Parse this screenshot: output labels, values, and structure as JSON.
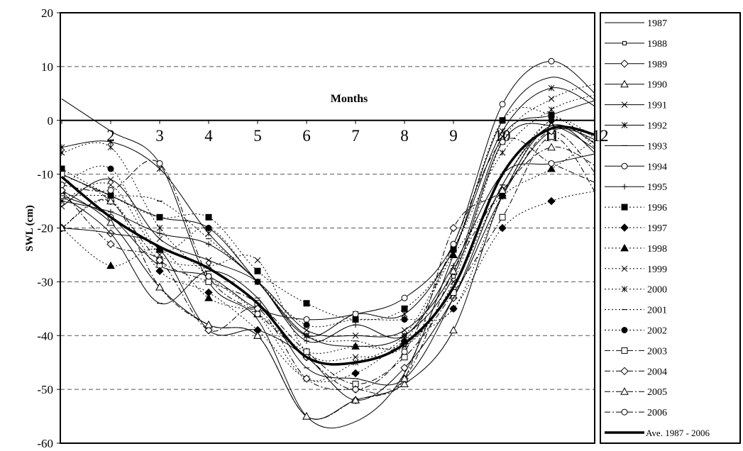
{
  "chart_data": {
    "type": "line",
    "title": "",
    "xlabel": "Months",
    "ylabel": "SWL (cm)",
    "x": [
      1,
      2,
      3,
      4,
      5,
      6,
      7,
      8,
      9,
      10,
      11,
      12
    ],
    "x_tick_labels": [
      "",
      "2",
      "3",
      "4",
      "5",
      "6",
      "7",
      "8",
      "9",
      "10",
      "11",
      "12"
    ],
    "ylim": [
      -60,
      20
    ],
    "y_ticks": [
      20,
      10,
      0,
      -10,
      -20,
      -30,
      -40,
      -50,
      -60
    ],
    "grid": "horizontal dashed",
    "legend_position": "right",
    "series": [
      {
        "name": "1987",
        "style": "solid",
        "marker": "none",
        "values": [
          4,
          -2,
          -8,
          -30,
          -37,
          -55,
          -56,
          -47,
          -25,
          0,
          8,
          3
        ]
      },
      {
        "name": "1988",
        "style": "solid",
        "marker": "small-square",
        "values": [
          -10,
          -14,
          -18,
          -20,
          -30,
          -40,
          -42,
          -40,
          -29,
          -4,
          -1,
          -6
        ]
      },
      {
        "name": "1989",
        "style": "solid",
        "marker": "diamond",
        "values": [
          -20,
          -21,
          -24,
          -39,
          -39,
          -44,
          -52,
          -46,
          -33,
          -14,
          -2,
          -4
        ]
      },
      {
        "name": "1990",
        "style": "solid",
        "marker": "triangle",
        "values": [
          -13,
          -19,
          -31,
          -38,
          -40,
          -55,
          -52,
          -49,
          -39,
          -14,
          -1,
          -7
        ]
      },
      {
        "name": "1991",
        "style": "solid",
        "marker": "x",
        "values": [
          -16,
          -11,
          -22,
          -26,
          -30,
          -39,
          -40,
          -39,
          -28,
          -3,
          1,
          4
        ]
      },
      {
        "name": "1992",
        "style": "solid",
        "marker": "asterisk",
        "values": [
          -5,
          -4,
          -9,
          -21,
          -30,
          -40,
          -36,
          -36,
          -24,
          -2,
          6,
          2
        ]
      },
      {
        "name": "1993",
        "style": "solid",
        "marker": "dash",
        "values": [
          -14,
          -21,
          -34,
          -28,
          -33,
          -46,
          -48,
          -48,
          -33,
          -12,
          -1,
          -5
        ]
      },
      {
        "name": "1994",
        "style": "solid",
        "marker": "circle",
        "values": [
          -14,
          -18,
          -27,
          -29,
          -35,
          -37,
          -36,
          -33,
          -23,
          3,
          11,
          4
        ]
      },
      {
        "name": "1995",
        "style": "solid",
        "marker": "plus",
        "values": [
          -15,
          -17,
          -21,
          -23,
          -30,
          -41,
          -38,
          -40,
          -27,
          -10,
          -8,
          -6
        ]
      },
      {
        "name": "1996",
        "style": "dotted",
        "marker": "filled-square",
        "values": [
          -9,
          -14,
          -18,
          -18,
          -28,
          -34,
          -37,
          -35,
          -24,
          0,
          1,
          -5
        ]
      },
      {
        "name": "1997",
        "style": "dotted",
        "marker": "filled-diamond",
        "values": [
          -20,
          -15,
          -28,
          -32,
          -39,
          -48,
          -47,
          -41,
          -35,
          -20,
          -15,
          -13
        ]
      },
      {
        "name": "1998",
        "style": "dotted",
        "marker": "filled-triangle",
        "values": [
          -20,
          -27,
          -24,
          -33,
          -36,
          -43,
          -42,
          -41,
          -25,
          -14,
          -9,
          -3
        ]
      },
      {
        "name": "1999",
        "style": "dotted",
        "marker": "x",
        "values": [
          -15,
          -12,
          -25,
          -27,
          -26,
          -43,
          -44,
          -42,
          -30,
          -4,
          4,
          7
        ]
      },
      {
        "name": "2000",
        "style": "dotted",
        "marker": "asterisk",
        "values": [
          -6,
          -5,
          -20,
          -29,
          -36,
          -48,
          -45,
          -40,
          -24,
          -6,
          2,
          5
        ]
      },
      {
        "name": "2001",
        "style": "dotted",
        "marker": "dash",
        "values": [
          -14,
          -14,
          -15,
          -22,
          -30,
          -40,
          -41,
          -42,
          -31,
          -12,
          0,
          -4
        ]
      },
      {
        "name": "2002",
        "style": "dotted",
        "marker": "filled-circle",
        "values": [
          -12,
          -9,
          -24,
          -20,
          -30,
          -38,
          -37,
          -37,
          -35,
          -14,
          0,
          -6
        ]
      },
      {
        "name": "2003",
        "style": "dash-dot",
        "marker": "square",
        "values": [
          -10,
          -15,
          -26,
          -30,
          -34,
          -43,
          -49,
          -44,
          -32,
          -18,
          -3,
          -15
        ]
      },
      {
        "name": "2004",
        "style": "dash-dot",
        "marker": "diamond",
        "values": [
          -13,
          -23,
          -26,
          -39,
          -35,
          -48,
          -50,
          -48,
          -20,
          -13,
          -2,
          -11
        ]
      },
      {
        "name": "2005",
        "style": "dash-dot",
        "marker": "triangle",
        "values": [
          -20,
          -15,
          -31,
          -38,
          -40,
          -55,
          -52,
          -48,
          -28,
          -13,
          -5,
          -9
        ]
      },
      {
        "name": "2006",
        "style": "dash-dot",
        "marker": "circle",
        "values": [
          -12,
          -13,
          -8,
          -29,
          -36,
          -44,
          -50,
          -43,
          -23,
          -4,
          -8,
          -12
        ]
      },
      {
        "name": "Ave. 1987 - 2006",
        "style": "thick",
        "marker": "none",
        "values": [
          -10.5,
          -18,
          -23.5,
          -27.5,
          -34,
          -44,
          -45,
          -41.5,
          -31,
          -10,
          -1.5,
          -3
        ]
      }
    ]
  }
}
